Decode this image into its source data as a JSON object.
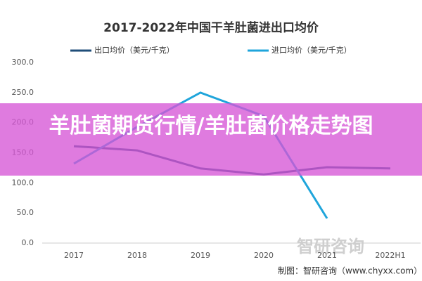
{
  "chart_data": {
    "type": "line",
    "title": "2017-2022年中国干羊肚菌进出口均价",
    "categories": [
      "2017",
      "2018",
      "2019",
      "2020",
      "2021",
      "2022H1"
    ],
    "series": [
      {
        "name": "出口均价（美元/千克）",
        "color": "#1f4e79",
        "values": [
          161,
          154,
          124,
          114,
          126,
          124
        ]
      },
      {
        "name": "进口均价（美元/千克）",
        "color": "#1fa5db",
        "values": [
          132,
          193,
          250,
          211,
          41,
          null
        ]
      }
    ],
    "ylim": [
      0,
      300
    ],
    "yticks": [
      {
        "value": 0,
        "label": "0.0"
      },
      {
        "value": 50,
        "label": "50.0"
      },
      {
        "value": 100,
        "label": "100.0"
      },
      {
        "value": 150,
        "label": "150.0"
      },
      {
        "value": 200,
        "label": "200.0"
      },
      {
        "value": 250,
        "label": "250.0"
      },
      {
        "value": 300,
        "label": "300.0"
      }
    ],
    "grid": false,
    "source": "制图：智研咨询（www.chyxx.com）",
    "watermark": "智研咨询",
    "banner": "羊肚菌期货行情/羊肚菌价格走势图"
  }
}
